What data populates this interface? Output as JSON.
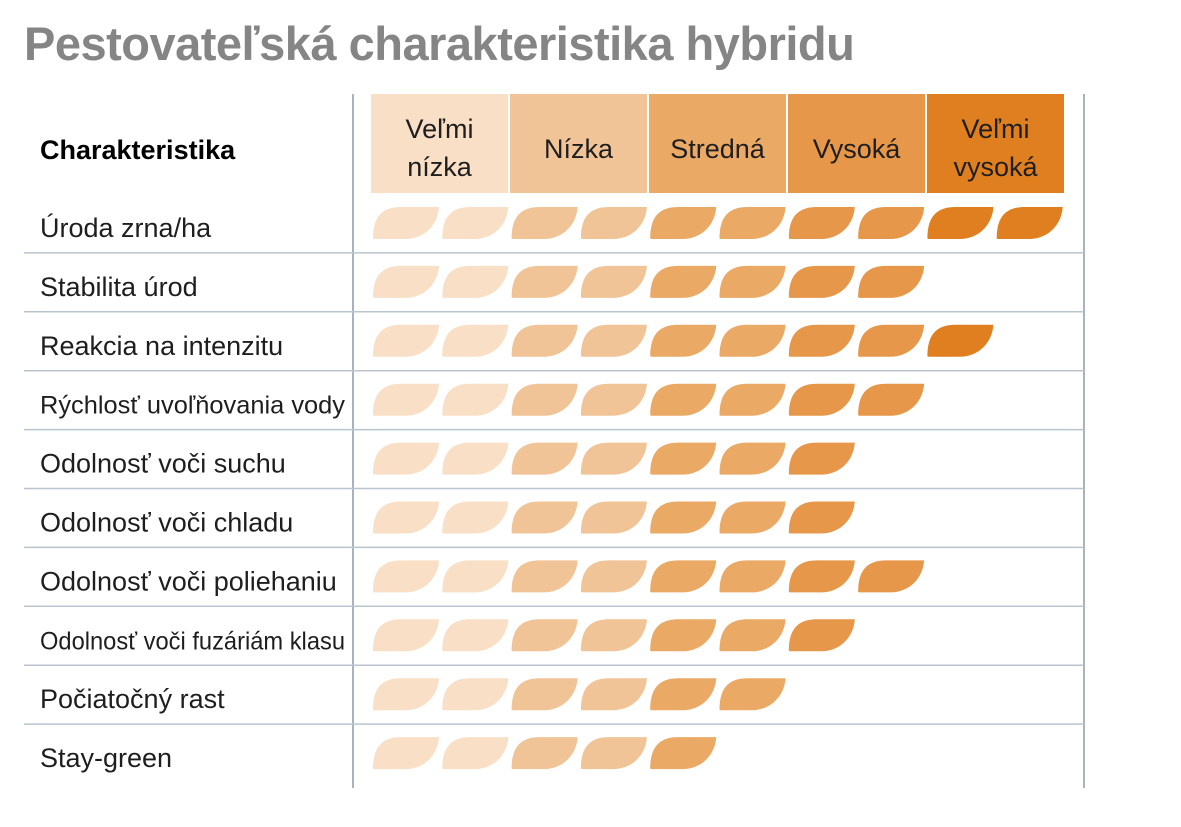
{
  "title": "Pestovateľská charakteristika hybridu",
  "header_label": "Charakteristika",
  "chart_data": {
    "type": "table",
    "title": "Pestovateľská charakteristika hybridu",
    "scale_levels": [
      {
        "label": [
          "Veľmi",
          "nízka"
        ],
        "color": "#f8dfc5"
      },
      {
        "label": [
          "Nízka"
        ],
        "color": "#f1c497"
      },
      {
        "label": [
          "Stredná"
        ],
        "color": "#eba966"
      },
      {
        "label": [
          "Vysoká"
        ],
        "color": "#e6974a"
      },
      {
        "label": [
          "Veľmi",
          "vysoká"
        ],
        "color": "#df7f20"
      }
    ],
    "max_value": 10,
    "leaf_colors": [
      "#f8dfc5",
      "#f8dfc5",
      "#f1c497",
      "#f1c497",
      "#eba966",
      "#eba966",
      "#e6974a",
      "#e6974a",
      "#df7f20",
      "#df7f20"
    ],
    "rows": [
      {
        "label": "Úroda zrna/ha",
        "value": 10
      },
      {
        "label": "Stabilita úrod",
        "value": 8
      },
      {
        "label": "Reakcia na intenzitu",
        "value": 9
      },
      {
        "label": "Rýchlosť uvoľňovania vody",
        "value": 8
      },
      {
        "label": "Odolnosť voči suchu",
        "value": 7
      },
      {
        "label": "Odolnosť voči chladu",
        "value": 7
      },
      {
        "label": "Odolnosť voči poliehaniu",
        "value": 8
      },
      {
        "label": "Odolnosť voči fuzáriám klasu",
        "value": 7
      },
      {
        "label": "Počiatočný rast",
        "value": 6
      },
      {
        "label": "Stay-green",
        "value": 5
      }
    ]
  }
}
